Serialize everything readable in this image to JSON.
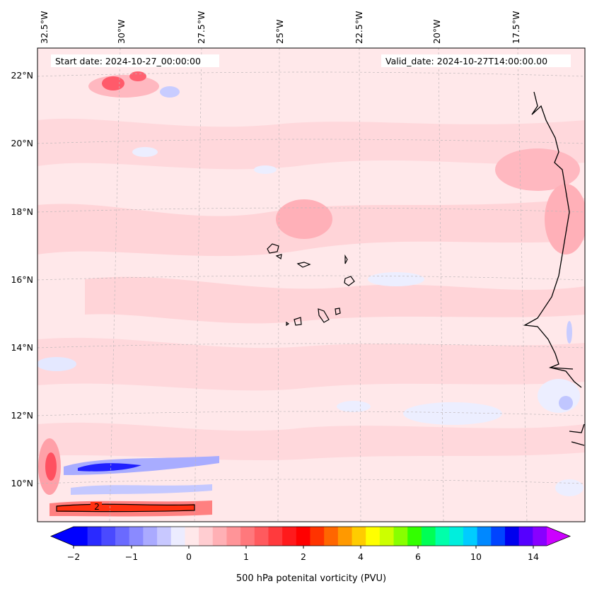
{
  "map": {
    "lon_labels": [
      "32.5°W",
      "30°W",
      "27.5°W",
      "25°W",
      "22.5°W",
      "20°W",
      "17.5°W"
    ],
    "lat_labels": [
      "22°N",
      "20°N",
      "18°N",
      "16°N",
      "14°N",
      "12°N",
      "10°N"
    ],
    "start_date": "Start date: 2024-10-27_00:00:00",
    "valid_date": "Valid_date: 2024-10-27T14:00:00.00",
    "contour_label": "2"
  },
  "colorbar": {
    "label": "500 hPa potenital vorticity (PVU)",
    "ticks": [
      "−2",
      "−1",
      "0",
      "1",
      "2",
      "4",
      "6",
      "10",
      "14"
    ],
    "colors": {
      "neg2": "#0000ff",
      "neg1": "#7070ff",
      "neg_light": "#e8ebff",
      "zero_light": "#ffe8ea",
      "pos_light": "#ffc0c4",
      "pos1": "#ff8888",
      "pos2": "#ff0000",
      "pos4": "#ffdd00",
      "pos6": "#33ff00",
      "pos10": "#00ddee",
      "pos14": "#8800ff"
    }
  }
}
